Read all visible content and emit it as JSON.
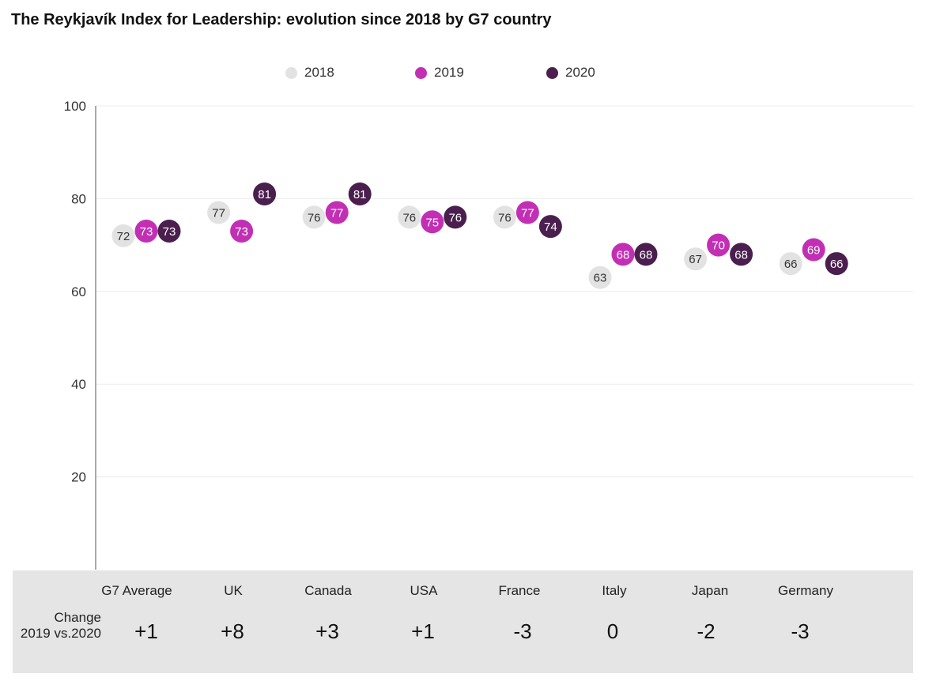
{
  "title": "The Reykjavík Index for Leadership: evolution since 2018 by G7 country",
  "colors": {
    "2018": "#e2e2e2",
    "2019": "#c22fb4",
    "2020": "#4a1f4e"
  },
  "change_label": {
    "line1": "Change",
    "line2": "2019 vs.2020"
  },
  "change_values": [
    "+1",
    "+8",
    "+3",
    "+1",
    "-3",
    "0",
    "-2",
    "-3"
  ],
  "chart_data": {
    "type": "scatter",
    "title": "The Reykjavík Index for Leadership: evolution since 2018 by G7 country",
    "categories": [
      "G7 Average",
      "UK",
      "Canada",
      "USA",
      "France",
      "Italy",
      "Japan",
      "Germany"
    ],
    "series": [
      {
        "name": "2018",
        "values": [
          72,
          77,
          76,
          76,
          76,
          63,
          67,
          66
        ]
      },
      {
        "name": "2019",
        "values": [
          73,
          73,
          77,
          75,
          77,
          68,
          70,
          69
        ]
      },
      {
        "name": "2020",
        "values": [
          73,
          81,
          81,
          76,
          74,
          68,
          68,
          66
        ]
      }
    ],
    "ylim": [
      0,
      100
    ],
    "yticks": [
      "20",
      "40",
      "60",
      "80",
      "100"
    ],
    "grid": true,
    "legend": "top-center",
    "xlabel": "",
    "ylabel": ""
  }
}
